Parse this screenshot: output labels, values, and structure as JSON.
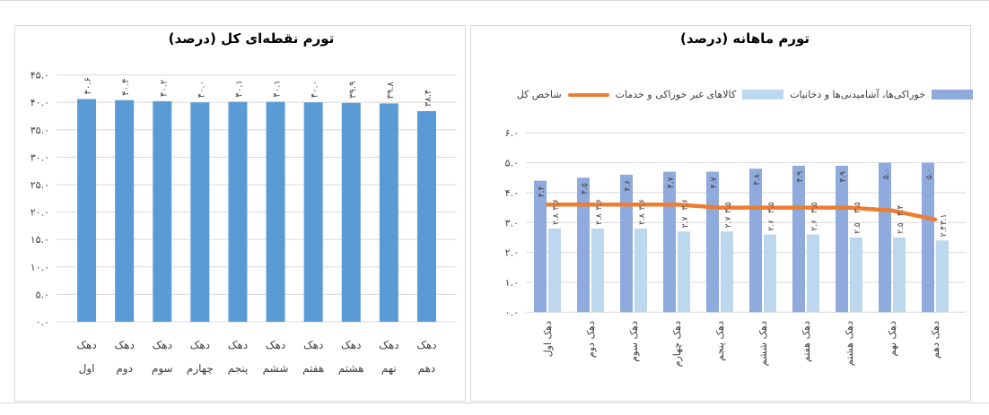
{
  "page": {
    "background": "#FFFFFF",
    "rule_color": "#D9D9D9",
    "panel_border_color": "#D9D9D9",
    "text_color": "#3F3F3F"
  },
  "chart_data": [
    {
      "type": "bar",
      "title": "تورم نقطه‌ای کل (درصد)",
      "categories": [
        "دهک اول",
        "دهک دوم",
        "دهک سوم",
        "دهک چهارم",
        "دهک پنجم",
        "دهک ششم",
        "دهک هفتم",
        "دهک هشتم",
        "دهک نهم",
        "دهک دهم"
      ],
      "category_word": "دهک",
      "category_ordinals": [
        "اول",
        "دوم",
        "سوم",
        "چهارم",
        "پنجم",
        "ششم",
        "هفتم",
        "هشتم",
        "نهم",
        "دهم"
      ],
      "values": [
        40.6,
        40.4,
        40.2,
        40.0,
        40.1,
        40.1,
        40.0,
        39.9,
        39.8,
        38.4
      ],
      "data_labels": [
        "۴۰.۶",
        "۴۰.۴",
        "۴۰.۲",
        "۴۰.۰",
        "۴۰.۱",
        "۴۰.۱",
        "۴۰.۰",
        "۳۹.۹",
        "۳۹.۸",
        "۳۸.۴"
      ],
      "bar_color": "#5B9BD5",
      "ylim": [
        0,
        45
      ],
      "ytick_step": 5,
      "yticks": [
        "۰.۰",
        "۵.۰",
        "۱۰.۰",
        "۱۵.۰",
        "۲۰.۰",
        "۲۵.۰",
        "۳۰.۰",
        "۳۵.۰",
        "۴۰.۰",
        "۴۵.۰"
      ],
      "grid": true,
      "legend_position": "none"
    },
    {
      "type": "bar+line",
      "title": "تورم ماهانه (درصد)",
      "categories": [
        "دهک اول",
        "دهک دوم",
        "دهک سوم",
        "دهک چهارم",
        "دهک پنجم",
        "دهک ششم",
        "دهک هفتم",
        "دهک هشتم",
        "دهک نهم",
        "دهک دهم"
      ],
      "series": [
        {
          "name": "خوراکی‌ها، آشامیدنی‌ها و دخانیات",
          "type": "bar",
          "color": "#8FAADC",
          "values": [
            4.4,
            4.5,
            4.6,
            4.7,
            4.7,
            4.8,
            4.9,
            4.9,
            5.0,
            5.0
          ],
          "data_labels": [
            "۴.۴",
            "۴.۵",
            "۴.۶",
            "۴.۷",
            "۴.۷",
            "۴.۸",
            "۴.۹",
            "۴.۹",
            "۵.۰",
            "۵.۰"
          ]
        },
        {
          "name": "کالاهای غیر خوراکی و خدمات",
          "type": "bar",
          "color": "#BDD7EE",
          "values": [
            2.8,
            2.8,
            2.8,
            2.7,
            2.7,
            2.6,
            2.6,
            2.5,
            2.5,
            2.4
          ],
          "data_labels": [
            "۲.۸",
            "۲.۸",
            "۲.۸",
            "۲.۷",
            "۲.۷",
            "۲.۶",
            "۲.۶",
            "۲.۵",
            "۲.۵",
            "۲.۴"
          ]
        },
        {
          "name": "شاخص کل",
          "type": "line",
          "color": "#ED7D31",
          "values": [
            3.6,
            3.6,
            3.6,
            3.6,
            3.5,
            3.5,
            3.5,
            3.5,
            3.4,
            3.1
          ],
          "data_labels": [
            "۳.۶",
            "۳.۶",
            "۳.۶",
            "۳.۶",
            "۳.۵",
            "۳.۵",
            "۳.۵",
            "۳.۵",
            "۳.۴",
            "۳.۱"
          ]
        }
      ],
      "legend": [
        {
          "label": "شاخص کل",
          "swatch": "line",
          "color": "#ED7D31"
        },
        {
          "label": "کالاهای غیر خوراکی و خدمات",
          "swatch": "bar",
          "color": "#BDD7EE"
        },
        {
          "label": "خوراکی‌ها، آشامیدنی‌ها و دخانیات",
          "swatch": "bar",
          "color": "#8FAADC"
        }
      ],
      "ylim": [
        0,
        6
      ],
      "ytick_step": 1,
      "yticks": [
        "۰.۰",
        "۱.۰",
        "۲.۰",
        "۳.۰",
        "۴.۰",
        "۵.۰",
        "۶.۰"
      ],
      "grid": true,
      "legend_position": "top"
    }
  ]
}
